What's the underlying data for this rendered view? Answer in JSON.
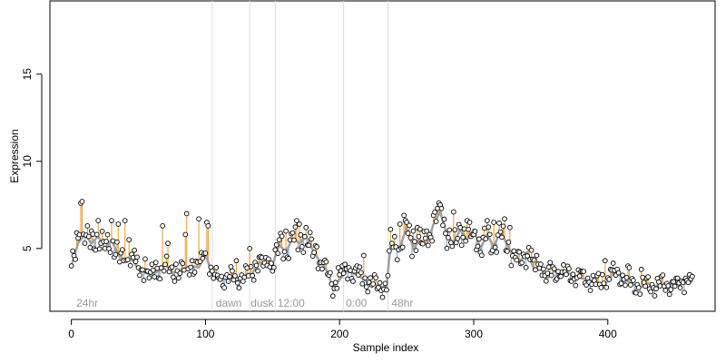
{
  "chart_data": {
    "type": "scatter",
    "title": "",
    "xlabel": "Sample index",
    "ylabel": "Expression",
    "xlim": [
      -16,
      480
    ],
    "ylim": [
      1.4,
      19.2
    ],
    "x_ticks": [
      0,
      100,
      200,
      300,
      400
    ],
    "y_ticks": [
      5,
      10,
      15
    ],
    "grid": false,
    "colors": {
      "points_fill": "#ffffff",
      "points_stroke": "#000000",
      "fit_line": "#a0a0a0",
      "residual_positive": "#f0a030",
      "residual_negative": "#7aa6dc",
      "phase_lines": "#dddddd",
      "phase_text": "#9a9a9a"
    },
    "phase_boundaries": [
      105,
      133,
      152,
      203,
      236
    ],
    "phase_labels": [
      {
        "text": "24hr",
        "x": 3
      },
      {
        "text": "dawn",
        "x": 107
      },
      {
        "text": "dusk",
        "x": 133
      },
      {
        "text": "12:00",
        "x": 153
      },
      {
        "text": "0:00",
        "x": 204
      },
      {
        "text": "48hr",
        "x": 238
      }
    ],
    "fit_anchors": [
      [
        0,
        4.0
      ],
      [
        5,
        5.3
      ],
      [
        10,
        5.8
      ],
      [
        15,
        5.3
      ],
      [
        20,
        5.7
      ],
      [
        25,
        5.0
      ],
      [
        30,
        5.5
      ],
      [
        35,
        4.6
      ],
      [
        40,
        4.3
      ],
      [
        45,
        4.4
      ],
      [
        50,
        3.8
      ],
      [
        55,
        3.6
      ],
      [
        60,
        3.5
      ],
      [
        65,
        3.7
      ],
      [
        70,
        4.1
      ],
      [
        75,
        3.6
      ],
      [
        80,
        3.7
      ],
      [
        85,
        3.9
      ],
      [
        90,
        4.0
      ],
      [
        95,
        3.9
      ],
      [
        100,
        4.7
      ],
      [
        105,
        3.5
      ],
      [
        110,
        3.2
      ],
      [
        115,
        3.3
      ],
      [
        120,
        3.4
      ],
      [
        125,
        3.3
      ],
      [
        130,
        3.5
      ],
      [
        135,
        3.6
      ],
      [
        140,
        4.2
      ],
      [
        145,
        4.0
      ],
      [
        150,
        4.1
      ],
      [
        155,
        5.2
      ],
      [
        160,
        4.8
      ],
      [
        165,
        5.6
      ],
      [
        170,
        5.3
      ],
      [
        175,
        5.7
      ],
      [
        180,
        4.9
      ],
      [
        185,
        4.3
      ],
      [
        190,
        3.8
      ],
      [
        195,
        2.8
      ],
      [
        200,
        3.2
      ],
      [
        205,
        3.7
      ],
      [
        210,
        3.6
      ],
      [
        215,
        3.4
      ],
      [
        220,
        3.1
      ],
      [
        225,
        3.0
      ],
      [
        230,
        2.8
      ],
      [
        235,
        2.8
      ],
      [
        238,
        5.2
      ],
      [
        245,
        5.1
      ],
      [
        250,
        6.2
      ],
      [
        255,
        5.0
      ],
      [
        260,
        5.5
      ],
      [
        265,
        5.2
      ],
      [
        270,
        6.4
      ],
      [
        275,
        7.1
      ],
      [
        280,
        5.8
      ],
      [
        285,
        5.3
      ],
      [
        290,
        6.1
      ],
      [
        295,
        5.5
      ],
      [
        300,
        6.1
      ],
      [
        305,
        5.0
      ],
      [
        310,
        5.8
      ],
      [
        315,
        5.1
      ],
      [
        320,
        6.0
      ],
      [
        325,
        5.2
      ],
      [
        330,
        4.5
      ],
      [
        335,
        4.3
      ],
      [
        340,
        4.8
      ],
      [
        345,
        3.8
      ],
      [
        350,
        3.9
      ],
      [
        355,
        3.3
      ],
      [
        360,
        3.7
      ],
      [
        365,
        3.5
      ],
      [
        370,
        3.6
      ],
      [
        375,
        3.4
      ],
      [
        380,
        3.3
      ],
      [
        385,
        3.2
      ],
      [
        390,
        3.1
      ],
      [
        395,
        3.0
      ],
      [
        400,
        3.1
      ],
      [
        405,
        3.7
      ],
      [
        410,
        3.4
      ],
      [
        415,
        3.1
      ],
      [
        420,
        2.9
      ],
      [
        425,
        2.8
      ],
      [
        430,
        3.0
      ],
      [
        435,
        2.8
      ],
      [
        440,
        3.0
      ],
      [
        445,
        2.9
      ],
      [
        450,
        3.0
      ],
      [
        455,
        3.0
      ],
      [
        460,
        3.0
      ],
      [
        463,
        3.1
      ]
    ],
    "point_count": 464,
    "highlighted_points": [
      [
        0,
        4.0
      ],
      [
        4,
        5.9
      ],
      [
        6,
        5.8
      ],
      [
        7,
        7.6
      ],
      [
        8,
        7.7
      ],
      [
        12,
        6.3
      ],
      [
        15,
        6.0
      ],
      [
        20,
        6.6
      ],
      [
        25,
        5.0
      ],
      [
        30,
        6.6
      ],
      [
        35,
        6.4
      ],
      [
        40,
        6.6
      ],
      [
        43,
        5.5
      ],
      [
        47,
        4.9
      ],
      [
        55,
        4.4
      ],
      [
        63,
        4.2
      ],
      [
        68,
        6.3
      ],
      [
        72,
        5.3
      ],
      [
        78,
        4.1
      ],
      [
        85,
        5.8
      ],
      [
        86,
        7.0
      ],
      [
        90,
        4.3
      ],
      [
        95,
        6.7
      ],
      [
        99,
        4.7
      ],
      [
        101,
        6.5
      ],
      [
        102,
        6.3
      ],
      [
        105,
        3.7
      ],
      [
        110,
        3.3
      ],
      [
        123,
        4.3
      ],
      [
        133,
        5.0
      ],
      [
        137,
        4.2
      ],
      [
        140,
        4.5
      ],
      [
        147,
        4.4
      ],
      [
        155,
        5.5
      ],
      [
        157,
        5.7
      ],
      [
        160,
        6.0
      ],
      [
        165,
        5.9
      ],
      [
        168,
        6.6
      ],
      [
        170,
        6.4
      ],
      [
        175,
        6.2
      ],
      [
        183,
        5.1
      ],
      [
        186,
        4.2
      ],
      [
        188,
        4.2
      ],
      [
        199,
        3.9
      ],
      [
        202,
        4.0
      ],
      [
        207,
        3.9
      ],
      [
        213,
        4.0
      ],
      [
        218,
        4.6
      ],
      [
        238,
        6.1
      ],
      [
        239,
        5.3
      ],
      [
        245,
        6.4
      ],
      [
        248,
        6.9
      ],
      [
        250,
        6.5
      ],
      [
        255,
        6.0
      ],
      [
        258,
        6.2
      ],
      [
        265,
        6.0
      ],
      [
        267,
        5.8
      ],
      [
        270,
        6.9
      ],
      [
        273,
        7.3
      ],
      [
        275,
        7.5
      ],
      [
        276,
        7.3
      ],
      [
        285,
        7.1
      ],
      [
        290,
        6.2
      ],
      [
        295,
        6.6
      ],
      [
        297,
        6.5
      ],
      [
        300,
        5.8
      ],
      [
        310,
        6.6
      ],
      [
        315,
        6.5
      ],
      [
        323,
        6.7
      ],
      [
        327,
        6.2
      ],
      [
        343,
        4.9
      ],
      [
        347,
        4.6
      ],
      [
        350,
        4.1
      ],
      [
        357,
        4.2
      ],
      [
        365,
        3.4
      ],
      [
        380,
        3.7
      ],
      [
        396,
        3.5
      ],
      [
        398,
        4.3
      ],
      [
        402,
        3.8
      ],
      [
        415,
        4.0
      ],
      [
        416,
        3.9
      ],
      [
        425,
        3.8
      ],
      [
        440,
        3.4
      ],
      [
        448,
        3.1
      ],
      [
        452,
        3.3
      ],
      [
        458,
        3.3
      ],
      [
        461,
        3.5
      ],
      [
        463,
        3.4
      ]
    ]
  }
}
